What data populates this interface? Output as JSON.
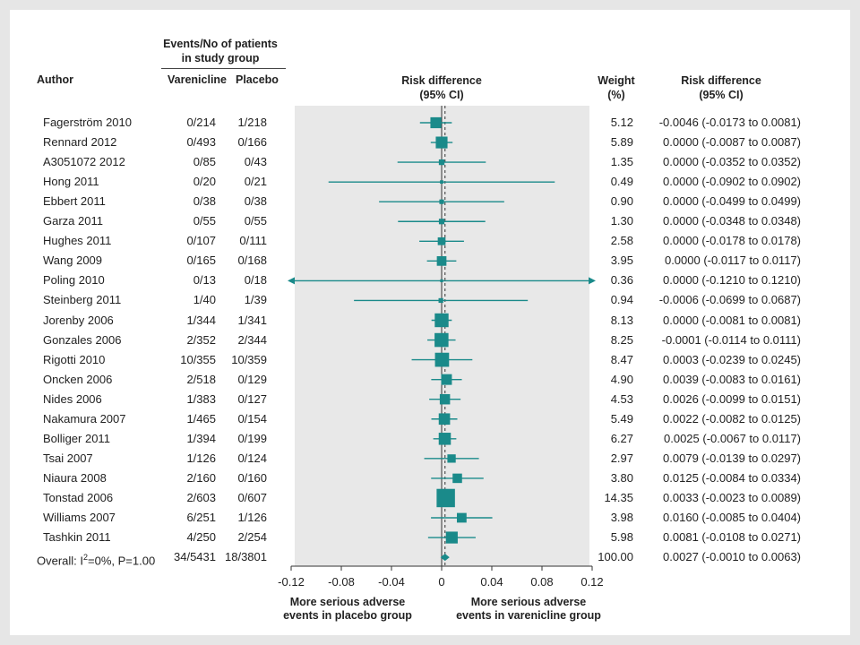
{
  "headers": {
    "events_group": "Events/No of patients",
    "events_group2": "in study group",
    "author": "Author",
    "varenicline": "Varenicline",
    "placebo": "Placebo",
    "rd_plot": "Risk difference",
    "rd_plot2": "(95% CI)",
    "weight": "Weight",
    "weight2": "(%)",
    "rd_col": "Risk difference",
    "rd_col2": "(95% CI)"
  },
  "footer": {
    "left1": "More serious adverse",
    "left2": "events in placebo group",
    "right1": "More serious adverse",
    "right2": "events in varenicline group"
  },
  "chart_data": {
    "type": "forest",
    "xlim": [
      -0.12,
      0.12
    ],
    "xticks": [
      "-0.12",
      "-0.08",
      "-0.04",
      "0",
      "0.04",
      "0.08",
      "0.12"
    ],
    "xtick_values": [
      -0.12,
      -0.08,
      -0.04,
      0,
      0.04,
      0.08,
      0.12
    ],
    "dashed_reference": 0.0027,
    "colors": {
      "marker": "#1a8a8a",
      "panel": "#e8e8e8",
      "line": "#1a8a8a"
    },
    "studies": [
      {
        "author": "Fagerström 2010",
        "var": "0/214",
        "pla": "1/218",
        "weight": "5.12",
        "ci": "-0.0046 (-0.0173 to 0.0081)",
        "est": -0.0046,
        "lo": -0.0173,
        "hi": 0.0081,
        "w": 5.12
      },
      {
        "author": "Rennard 2012",
        "var": "0/493",
        "pla": "0/166",
        "weight": "5.89",
        "ci": "0.0000 (-0.0087 to 0.0087)",
        "est": 0.0,
        "lo": -0.0087,
        "hi": 0.0087,
        "w": 5.89
      },
      {
        "author": "A3051072 2012",
        "var": "0/85",
        "pla": "0/43",
        "weight": "1.35",
        "ci": "0.0000 (-0.0352 to 0.0352)",
        "est": 0.0,
        "lo": -0.0352,
        "hi": 0.0352,
        "w": 1.35
      },
      {
        "author": "Hong 2011",
        "var": "0/20",
        "pla": "0/21",
        "weight": "0.49",
        "ci": "0.0000 (-0.0902 to 0.0902)",
        "est": 0.0,
        "lo": -0.0902,
        "hi": 0.0902,
        "w": 0.49
      },
      {
        "author": "Ebbert 2011",
        "var": "0/38",
        "pla": "0/38",
        "weight": "0.90",
        "ci": "0.0000 (-0.0499 to 0.0499)",
        "est": 0.0,
        "lo": -0.0499,
        "hi": 0.0499,
        "w": 0.9
      },
      {
        "author": "Garza 2011",
        "var": "0/55",
        "pla": "0/55",
        "weight": "1.30",
        "ci": "0.0000 (-0.0348 to 0.0348)",
        "est": 0.0,
        "lo": -0.0348,
        "hi": 0.0348,
        "w": 1.3
      },
      {
        "author": "Hughes 2011",
        "var": "0/107",
        "pla": "0/111",
        "weight": "2.58",
        "ci": "0.0000 (-0.0178 to 0.0178)",
        "est": 0.0,
        "lo": -0.0178,
        "hi": 0.0178,
        "w": 2.58
      },
      {
        "author": "Wang 2009",
        "var": "0/165",
        "pla": "0/168",
        "weight": "3.95",
        "ci": "0.0000 (-0.0117 to 0.0117)",
        "est": 0.0,
        "lo": -0.0117,
        "hi": 0.0117,
        "w": 3.95
      },
      {
        "author": "Poling 2010",
        "var": "0/13",
        "pla": "0/18",
        "weight": "0.36",
        "ci": "0.0000 (-0.1210 to 0.1210)",
        "est": 0.0,
        "lo": -0.121,
        "hi": 0.121,
        "w": 0.36
      },
      {
        "author": "Steinberg 2011",
        "var": "1/40",
        "pla": "1/39",
        "weight": "0.94",
        "ci": "-0.0006 (-0.0699 to 0.0687)",
        "est": -0.0006,
        "lo": -0.0699,
        "hi": 0.0687,
        "w": 0.94
      },
      {
        "author": "Jorenby 2006",
        "var": "1/344",
        "pla": "1/341",
        "weight": "8.13",
        "ci": "0.0000 (-0.0081 to 0.0081)",
        "est": 0.0,
        "lo": -0.0081,
        "hi": 0.0081,
        "w": 8.13
      },
      {
        "author": "Gonzales 2006",
        "var": "2/352",
        "pla": "2/344",
        "weight": "8.25",
        "ci": "-0.0001 (-0.0114 to 0.0111)",
        "est": -0.0001,
        "lo": -0.0114,
        "hi": 0.0111,
        "w": 8.25
      },
      {
        "author": "Rigotti 2010",
        "var": "10/355",
        "pla": "10/359",
        "weight": "8.47",
        "ci": "0.0003 (-0.0239 to 0.0245)",
        "est": 0.0003,
        "lo": -0.0239,
        "hi": 0.0245,
        "w": 8.47
      },
      {
        "author": "Oncken 2006",
        "var": "2/518",
        "pla": "0/129",
        "weight": "4.90",
        "ci": "0.0039 (-0.0083 to 0.0161)",
        "est": 0.0039,
        "lo": -0.0083,
        "hi": 0.0161,
        "w": 4.9
      },
      {
        "author": "Nides 2006",
        "var": "1/383",
        "pla": "0/127",
        "weight": "4.53",
        "ci": "0.0026 (-0.0099 to 0.0151)",
        "est": 0.0026,
        "lo": -0.0099,
        "hi": 0.0151,
        "w": 4.53
      },
      {
        "author": "Nakamura 2007",
        "var": "1/465",
        "pla": "0/154",
        "weight": "5.49",
        "ci": "0.0022 (-0.0082 to 0.0125)",
        "est": 0.0022,
        "lo": -0.0082,
        "hi": 0.0125,
        "w": 5.49
      },
      {
        "author": "Bolliger 2011",
        "var": "1/394",
        "pla": "0/199",
        "weight": "6.27",
        "ci": "0.0025 (-0.0067 to 0.0117)",
        "est": 0.0025,
        "lo": -0.0067,
        "hi": 0.0117,
        "w": 6.27
      },
      {
        "author": "Tsai 2007",
        "var": "1/126",
        "pla": "0/124",
        "weight": "2.97",
        "ci": "0.0079 (-0.0139 to 0.0297)",
        "est": 0.0079,
        "lo": -0.0139,
        "hi": 0.0297,
        "w": 2.97
      },
      {
        "author": "Niaura 2008",
        "var": "2/160",
        "pla": "0/160",
        "weight": "3.80",
        "ci": "0.0125 (-0.0084 to 0.0334)",
        "est": 0.0125,
        "lo": -0.0084,
        "hi": 0.0334,
        "w": 3.8
      },
      {
        "author": "Tonstad 2006",
        "var": "2/603",
        "pla": "0/607",
        "weight": "14.35",
        "ci": "0.0033 (-0.0023 to 0.0089)",
        "est": 0.0033,
        "lo": -0.0023,
        "hi": 0.0089,
        "w": 14.35
      },
      {
        "author": "Williams 2007",
        "var": "6/251",
        "pla": "1/126",
        "weight": "3.98",
        "ci": "0.0160 (-0.0085 to 0.0404)",
        "est": 0.016,
        "lo": -0.0085,
        "hi": 0.0404,
        "w": 3.98
      },
      {
        "author": "Tashkin 2011",
        "var": "4/250",
        "pla": "2/254",
        "weight": "5.98",
        "ci": "0.0081 (-0.0108 to 0.0271)",
        "est": 0.0081,
        "lo": -0.0108,
        "hi": 0.0271,
        "w": 5.98
      }
    ],
    "overall": {
      "author_pre": "Overall: I",
      "author_sup": "2",
      "author_post": "=0%, P=1.00",
      "var": "34/5431",
      "pla": "18/3801",
      "weight": "100.00",
      "ci": "0.0027 (-0.0010 to 0.0063)",
      "est": 0.0027,
      "lo": -0.001,
      "hi": 0.0063
    }
  }
}
